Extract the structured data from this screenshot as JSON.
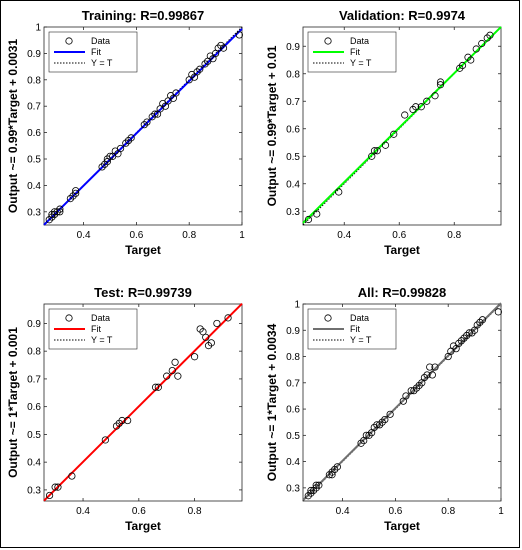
{
  "chart_data": [
    {
      "type": "scatter",
      "title": "Training: R=0.99867",
      "xlabel": "Target",
      "ylabel": "Output ~= 0.99*Target + 0.0031",
      "xlim": [
        0.25,
        1.0
      ],
      "ylim": [
        0.25,
        1.0
      ],
      "xticks": [
        "0.4",
        "0.6",
        "0.8",
        "1"
      ],
      "yticks": [
        "0.3",
        "0.4",
        "0.5",
        "0.6",
        "0.7",
        "0.8",
        "0.9",
        "1"
      ],
      "xtick_values": [
        0.4,
        0.6,
        0.8,
        1.0
      ],
      "ytick_values": [
        0.3,
        0.4,
        0.5,
        0.6,
        0.7,
        0.8,
        0.9,
        1.0
      ],
      "fit": {
        "slope": 0.99,
        "intercept": 0.0031,
        "color": "#0000ff"
      },
      "legend": [
        "Data",
        "Fit",
        "Y = T"
      ],
      "legend_position": "top-left",
      "points": [
        [
          0.27,
          0.27
        ],
        [
          0.28,
          0.28
        ],
        [
          0.28,
          0.29
        ],
        [
          0.29,
          0.29
        ],
        [
          0.29,
          0.3
        ],
        [
          0.3,
          0.3
        ],
        [
          0.31,
          0.31
        ],
        [
          0.31,
          0.3
        ],
        [
          0.35,
          0.35
        ],
        [
          0.36,
          0.36
        ],
        [
          0.37,
          0.38
        ],
        [
          0.37,
          0.37
        ],
        [
          0.47,
          0.47
        ],
        [
          0.48,
          0.48
        ],
        [
          0.49,
          0.5
        ],
        [
          0.49,
          0.49
        ],
        [
          0.5,
          0.51
        ],
        [
          0.51,
          0.51
        ],
        [
          0.52,
          0.53
        ],
        [
          0.53,
          0.52
        ],
        [
          0.54,
          0.54
        ],
        [
          0.56,
          0.56
        ],
        [
          0.57,
          0.57
        ],
        [
          0.58,
          0.58
        ],
        [
          0.63,
          0.63
        ],
        [
          0.64,
          0.64
        ],
        [
          0.66,
          0.66
        ],
        [
          0.67,
          0.67
        ],
        [
          0.68,
          0.67
        ],
        [
          0.69,
          0.69
        ],
        [
          0.7,
          0.71
        ],
        [
          0.71,
          0.7
        ],
        [
          0.72,
          0.72
        ],
        [
          0.73,
          0.74
        ],
        [
          0.74,
          0.73
        ],
        [
          0.75,
          0.75
        ],
        [
          0.8,
          0.8
        ],
        [
          0.81,
          0.82
        ],
        [
          0.82,
          0.81
        ],
        [
          0.83,
          0.83
        ],
        [
          0.84,
          0.84
        ],
        [
          0.86,
          0.86
        ],
        [
          0.87,
          0.87
        ],
        [
          0.88,
          0.89
        ],
        [
          0.89,
          0.88
        ],
        [
          0.9,
          0.9
        ],
        [
          0.91,
          0.92
        ],
        [
          0.92,
          0.93
        ],
        [
          0.93,
          0.92
        ],
        [
          0.99,
          0.97
        ]
      ]
    },
    {
      "type": "scatter",
      "title": "Validation: R=0.9974",
      "xlabel": "Target",
      "ylabel": "Output ~= 0.99*Target + 0.01",
      "xlim": [
        0.25,
        0.97
      ],
      "ylim": [
        0.25,
        0.97
      ],
      "xticks": [
        "0.4",
        "0.6",
        "0.8"
      ],
      "yticks": [
        "0.3",
        "0.4",
        "0.5",
        "0.6",
        "0.7",
        "0.8",
        "0.9"
      ],
      "xtick_values": [
        0.4,
        0.6,
        0.8
      ],
      "ytick_values": [
        0.3,
        0.4,
        0.5,
        0.6,
        0.7,
        0.8,
        0.9
      ],
      "fit": {
        "slope": 0.99,
        "intercept": 0.01,
        "color": "#00ff00"
      },
      "legend": [
        "Data",
        "Fit",
        "Y = T"
      ],
      "legend_position": "top-left",
      "points": [
        [
          0.27,
          0.27
        ],
        [
          0.3,
          0.29
        ],
        [
          0.38,
          0.37
        ],
        [
          0.5,
          0.5
        ],
        [
          0.51,
          0.52
        ],
        [
          0.52,
          0.52
        ],
        [
          0.55,
          0.54
        ],
        [
          0.58,
          0.58
        ],
        [
          0.62,
          0.65
        ],
        [
          0.65,
          0.67
        ],
        [
          0.66,
          0.68
        ],
        [
          0.68,
          0.68
        ],
        [
          0.7,
          0.7
        ],
        [
          0.73,
          0.72
        ],
        [
          0.75,
          0.77
        ],
        [
          0.75,
          0.76
        ],
        [
          0.82,
          0.82
        ],
        [
          0.83,
          0.83
        ],
        [
          0.85,
          0.86
        ],
        [
          0.86,
          0.85
        ],
        [
          0.88,
          0.89
        ],
        [
          0.9,
          0.91
        ],
        [
          0.92,
          0.93
        ],
        [
          0.93,
          0.94
        ]
      ]
    },
    {
      "type": "scatter",
      "title": "Test: R=0.99739",
      "xlabel": "Target",
      "ylabel": "Output ~= 1*Target + 0.001",
      "xlim": [
        0.26,
        0.97
      ],
      "ylim": [
        0.26,
        0.97
      ],
      "xticks": [
        "0.4",
        "0.6",
        "0.8"
      ],
      "yticks": [
        "0.3",
        "0.4",
        "0.5",
        "0.6",
        "0.7",
        "0.8",
        "0.9"
      ],
      "xtick_values": [
        0.4,
        0.6,
        0.8
      ],
      "ytick_values": [
        0.3,
        0.4,
        0.5,
        0.6,
        0.7,
        0.8,
        0.9
      ],
      "fit": {
        "slope": 1.0,
        "intercept": 0.001,
        "color": "#ff0000"
      },
      "legend": [
        "Data",
        "Fit",
        "Y = T"
      ],
      "legend_position": "top-left",
      "points": [
        [
          0.28,
          0.28
        ],
        [
          0.3,
          0.31
        ],
        [
          0.31,
          0.31
        ],
        [
          0.36,
          0.35
        ],
        [
          0.48,
          0.48
        ],
        [
          0.52,
          0.53
        ],
        [
          0.53,
          0.54
        ],
        [
          0.54,
          0.55
        ],
        [
          0.56,
          0.55
        ],
        [
          0.66,
          0.67
        ],
        [
          0.67,
          0.67
        ],
        [
          0.7,
          0.71
        ],
        [
          0.72,
          0.73
        ],
        [
          0.73,
          0.76
        ],
        [
          0.74,
          0.71
        ],
        [
          0.8,
          0.78
        ],
        [
          0.82,
          0.88
        ],
        [
          0.83,
          0.87
        ],
        [
          0.84,
          0.85
        ],
        [
          0.85,
          0.82
        ],
        [
          0.86,
          0.83
        ],
        [
          0.88,
          0.9
        ],
        [
          0.92,
          0.92
        ]
      ]
    },
    {
      "type": "scatter",
      "title": "All: R=0.99828",
      "xlabel": "Target",
      "ylabel": "Output ~= 1*Target + 0.0034",
      "xlim": [
        0.25,
        1.0
      ],
      "ylim": [
        0.25,
        1.0
      ],
      "xticks": [
        "0.4",
        "0.6",
        "0.8",
        "1"
      ],
      "yticks": [
        "0.3",
        "0.4",
        "0.5",
        "0.6",
        "0.7",
        "0.8",
        "0.9",
        "1"
      ],
      "xtick_values": [
        0.4,
        0.6,
        0.8,
        1.0
      ],
      "ytick_values": [
        0.3,
        0.4,
        0.5,
        0.6,
        0.7,
        0.8,
        0.9,
        1.0
      ],
      "fit": {
        "slope": 1.0,
        "intercept": 0.0034,
        "color": "#707070"
      },
      "legend": [
        "Data",
        "Fit",
        "Y = T"
      ],
      "legend_position": "top-left",
      "points": [
        [
          0.27,
          0.27
        ],
        [
          0.28,
          0.28
        ],
        [
          0.28,
          0.29
        ],
        [
          0.29,
          0.29
        ],
        [
          0.3,
          0.3
        ],
        [
          0.3,
          0.31
        ],
        [
          0.31,
          0.31
        ],
        [
          0.35,
          0.35
        ],
        [
          0.36,
          0.36
        ],
        [
          0.36,
          0.35
        ],
        [
          0.37,
          0.37
        ],
        [
          0.38,
          0.38
        ],
        [
          0.47,
          0.47
        ],
        [
          0.48,
          0.48
        ],
        [
          0.49,
          0.5
        ],
        [
          0.5,
          0.5
        ],
        [
          0.51,
          0.51
        ],
        [
          0.52,
          0.53
        ],
        [
          0.53,
          0.54
        ],
        [
          0.54,
          0.54
        ],
        [
          0.55,
          0.55
        ],
        [
          0.56,
          0.56
        ],
        [
          0.58,
          0.58
        ],
        [
          0.63,
          0.63
        ],
        [
          0.64,
          0.65
        ],
        [
          0.66,
          0.67
        ],
        [
          0.67,
          0.67
        ],
        [
          0.68,
          0.68
        ],
        [
          0.69,
          0.69
        ],
        [
          0.7,
          0.7
        ],
        [
          0.71,
          0.72
        ],
        [
          0.72,
          0.73
        ],
        [
          0.73,
          0.76
        ],
        [
          0.74,
          0.73
        ],
        [
          0.75,
          0.76
        ],
        [
          0.8,
          0.8
        ],
        [
          0.81,
          0.82
        ],
        [
          0.82,
          0.84
        ],
        [
          0.83,
          0.83
        ],
        [
          0.84,
          0.85
        ],
        [
          0.85,
          0.86
        ],
        [
          0.86,
          0.87
        ],
        [
          0.87,
          0.88
        ],
        [
          0.88,
          0.89
        ],
        [
          0.89,
          0.89
        ],
        [
          0.9,
          0.9
        ],
        [
          0.91,
          0.92
        ],
        [
          0.92,
          0.93
        ],
        [
          0.93,
          0.94
        ],
        [
          0.99,
          0.97
        ]
      ]
    }
  ]
}
